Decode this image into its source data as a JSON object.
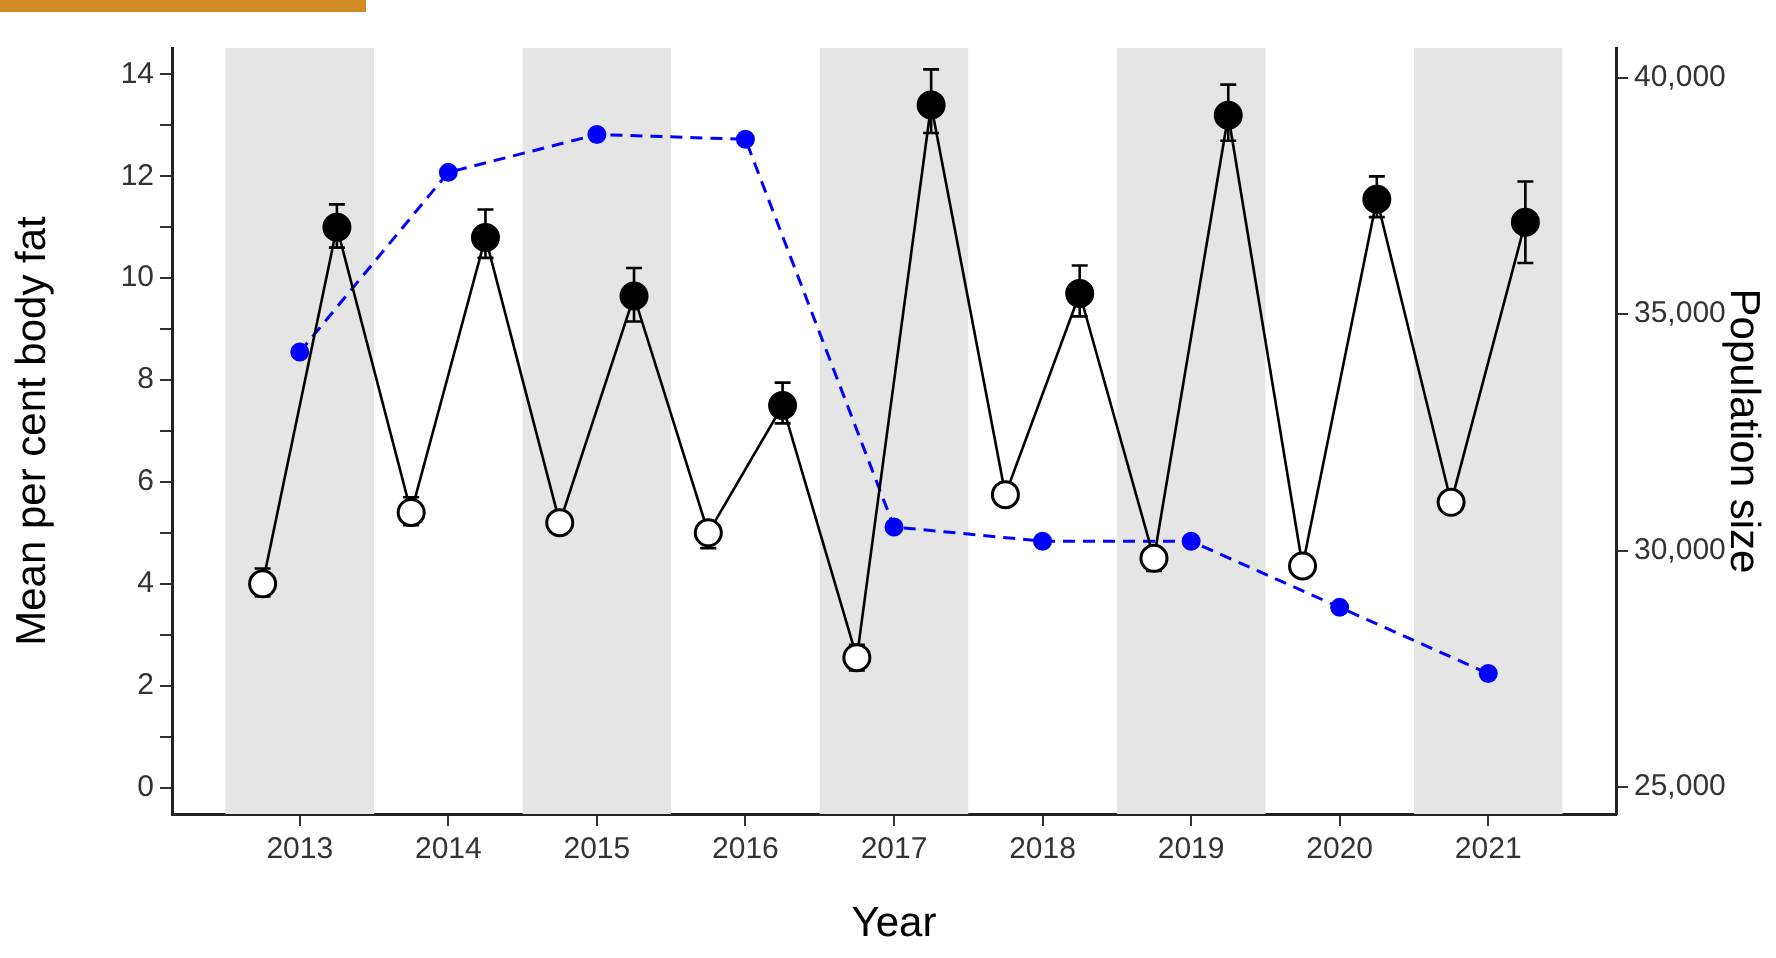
{
  "chart_data": {
    "type": "line",
    "xlabel": "Year",
    "ylabel": "Mean per cent body fat",
    "y2label": "Population size",
    "xlim": [
      2012.14,
      2021.86
    ],
    "xticks": [
      2013,
      2014,
      2015,
      2016,
      2017,
      2018,
      2019,
      2020,
      2021
    ],
    "ylim": [
      -0.52,
      14.52
    ],
    "yticks": [
      0,
      {
        "value": 1,
        "label": null
      },
      2,
      {
        "value": 3,
        "label": null
      },
      4,
      {
        "value": 5,
        "label": null
      },
      6,
      {
        "value": 7,
        "label": null
      },
      8,
      {
        "value": 9,
        "label": null
      },
      10,
      {
        "value": 11,
        "label": null
      },
      12,
      {
        "value": 13,
        "label": null
      },
      14
    ],
    "y2lim": [
      24430,
      40630
    ],
    "y2ticks": [
      {
        "value": 25000,
        "label": "25,000"
      },
      {
        "value": 30000,
        "label": "30,000"
      },
      {
        "value": 35000,
        "label": "35,000"
      },
      {
        "value": 40000,
        "label": "40,000"
      }
    ],
    "grid": false,
    "marker": "circle",
    "bands": [
      {
        "axis": "x",
        "from": 2012.5,
        "to": 2013.5,
        "color": "#e5e5e5"
      },
      {
        "axis": "x",
        "from": 2014.5,
        "to": 2015.5,
        "color": "#e5e5e5"
      },
      {
        "axis": "x",
        "from": 2016.5,
        "to": 2017.5,
        "color": "#e5e5e5"
      },
      {
        "axis": "x",
        "from": 2018.5,
        "to": 2019.5,
        "color": "#e5e5e5"
      },
      {
        "axis": "x",
        "from": 2020.5,
        "to": 2021.5,
        "color": "#e5e5e5"
      }
    ],
    "series": [
      {
        "color": "#000000",
        "line_style": "solid",
        "x": [
          2012.75,
          2013.25,
          2013.75,
          2014.25,
          2014.75,
          2015.25,
          2015.75,
          2016.25,
          2016.75,
          2017.25,
          2017.75,
          2018.25,
          2018.75,
          2019.25,
          2019.75,
          2020.25,
          2020.75,
          2021.25
        ],
        "values": [
          4.0,
          11.0,
          5.4,
          10.8,
          5.2,
          9.65,
          5.0,
          7.5,
          2.55,
          13.4,
          5.75,
          9.7,
          4.5,
          13.2,
          4.35,
          11.55,
          5.6,
          11.1
        ],
        "colors": [
          "#ffffff",
          "#000000",
          "#ffffff",
          "#000000",
          "#ffffff",
          "#000000",
          "#ffffff",
          "#000000",
          "#ffffff",
          "#000000",
          "#ffffff",
          "#000000",
          "#ffffff",
          "#000000",
          "#ffffff",
          "#000000",
          "#ffffff",
          "#000000"
        ],
        "errors": [
          [
            3.75,
            4.3
          ],
          [
            10.6,
            11.45
          ],
          [
            5.15,
            5.7
          ],
          [
            10.4,
            11.35
          ],
          [
            5.0,
            5.35
          ],
          [
            9.15,
            10.2
          ],
          [
            4.7,
            5.2
          ],
          [
            7.15,
            7.95
          ],
          [
            2.3,
            2.8
          ],
          [
            12.85,
            14.1
          ],
          [
            5.55,
            5.95
          ],
          [
            9.25,
            10.25
          ],
          [
            4.25,
            4.7
          ],
          [
            12.7,
            13.8
          ],
          [
            4.25,
            4.5
          ],
          [
            11.2,
            12.0
          ],
          [
            5.4,
            5.75
          ],
          [
            10.3,
            11.9
          ]
        ]
      },
      {
        "color": "#0000ff",
        "line_style": "dashed",
        "axis": "y2",
        "x": [
          2013,
          2014,
          2015,
          2016,
          2017,
          2018,
          2019,
          2020,
          2021
        ],
        "values": [
          34200,
          38000,
          38800,
          38700,
          30500,
          30200,
          30200,
          28800,
          27400
        ]
      }
    ]
  }
}
